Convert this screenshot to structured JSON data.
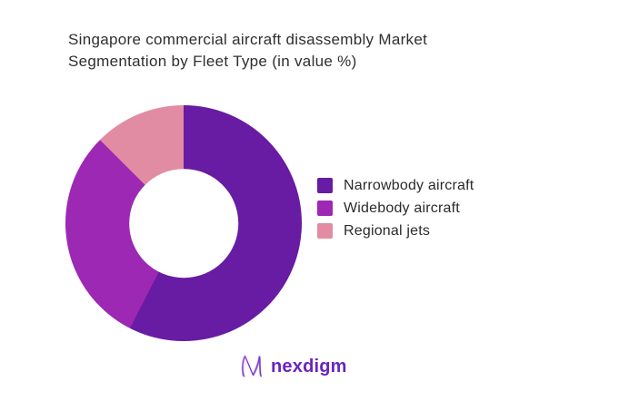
{
  "page": {
    "background_color": "#ffffff"
  },
  "header": {
    "title_lines": [
      "Singapore commercial aircraft disassembly Market",
      "Segmentation by Fleet Type (in value %)"
    ],
    "title_color": "#2f2f2f"
  },
  "chart_data": {
    "type": "pie",
    "subtype": "donut",
    "title": "Singapore commercial aircraft disassembly Market Segmentation by Fleet Type (in value %)",
    "categories": [
      "Narrowbody aircraft",
      "Widebody aircraft",
      "Regional jets"
    ],
    "values": [
      57.5,
      30,
      12.5
    ],
    "unit": "% of value",
    "colors": [
      "#681ba3",
      "#9c28b4",
      "#e18ca3"
    ],
    "start_angle_deg": 0,
    "direction": "clockwise",
    "inner_radius_ratio": 0.46,
    "legend_position": "right",
    "data_labels_shown": false
  },
  "footer": {
    "logo_text": "nexdigm",
    "logo_color": "#6b24be"
  }
}
